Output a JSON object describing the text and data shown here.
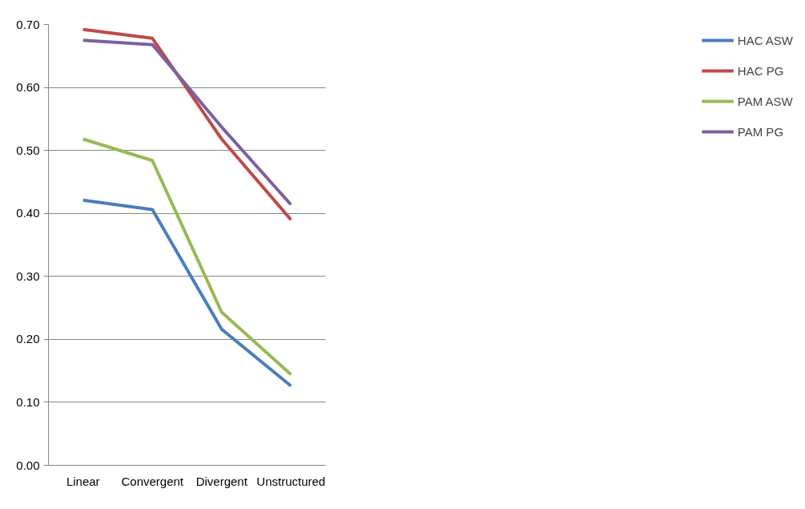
{
  "chart_data": {
    "type": "line",
    "categories": [
      "Linear",
      "Convergent",
      "Divergent",
      "Unstructured"
    ],
    "series": [
      {
        "name": "HAC ASW",
        "color": "#4a7ebb",
        "values": [
          0.421,
          0.406,
          0.216,
          0.126
        ]
      },
      {
        "name": "HAC PG",
        "color": "#be4b48",
        "values": [
          0.692,
          0.678,
          0.518,
          0.39
        ]
      },
      {
        "name": "PAM ASW",
        "color": "#98b954",
        "values": [
          0.518,
          0.484,
          0.243,
          0.144
        ]
      },
      {
        "name": "PAM PG",
        "color": "#7d60a0",
        "values": [
          0.675,
          0.668,
          0.537,
          0.414
        ]
      }
    ],
    "ylim": [
      0,
      0.7
    ],
    "yticks": [
      {
        "value": 0,
        "label": "0.00"
      },
      {
        "value": 0.1,
        "label": "0.10"
      },
      {
        "value": 0.2,
        "label": "0.20"
      },
      {
        "value": 0.3,
        "label": "0.30"
      },
      {
        "value": 0.4,
        "label": "0.40"
      },
      {
        "value": 0.5,
        "label": "0.50"
      },
      {
        "value": 0.6,
        "label": "0.60"
      },
      {
        "value": 0.7,
        "label": "0.70"
      }
    ],
    "grid": "y",
    "legend": "right",
    "marker": "none",
    "line_style": "solid"
  }
}
